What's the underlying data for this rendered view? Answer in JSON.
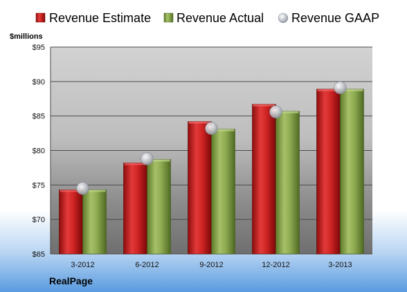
{
  "chart_data": {
    "type": "bar",
    "unit_label": "$millions",
    "company": "RealPage",
    "categories": [
      "3-2012",
      "6-2012",
      "9-2012",
      "12-2012",
      "3-2013"
    ],
    "series": [
      {
        "name": "Revenue Estimate",
        "values": [
          74.3,
          78.2,
          84.2,
          86.7,
          88.9
        ],
        "color": "#c81e1e"
      },
      {
        "name": "Revenue Actual",
        "values": [
          74.3,
          78.7,
          83.1,
          85.7,
          88.9
        ],
        "color": "#8aa84c"
      }
    ],
    "gaap": {
      "name": "Revenue GAAP",
      "values": [
        74.5,
        78.8,
        83.2,
        85.6,
        89.1
      ],
      "color": "#b8bcc4"
    },
    "yticks": [
      "$65",
      "$70",
      "$75",
      "$80",
      "$85",
      "$90",
      "$95"
    ],
    "ylim": [
      65,
      95
    ],
    "grid": true,
    "legend_position": "top"
  }
}
